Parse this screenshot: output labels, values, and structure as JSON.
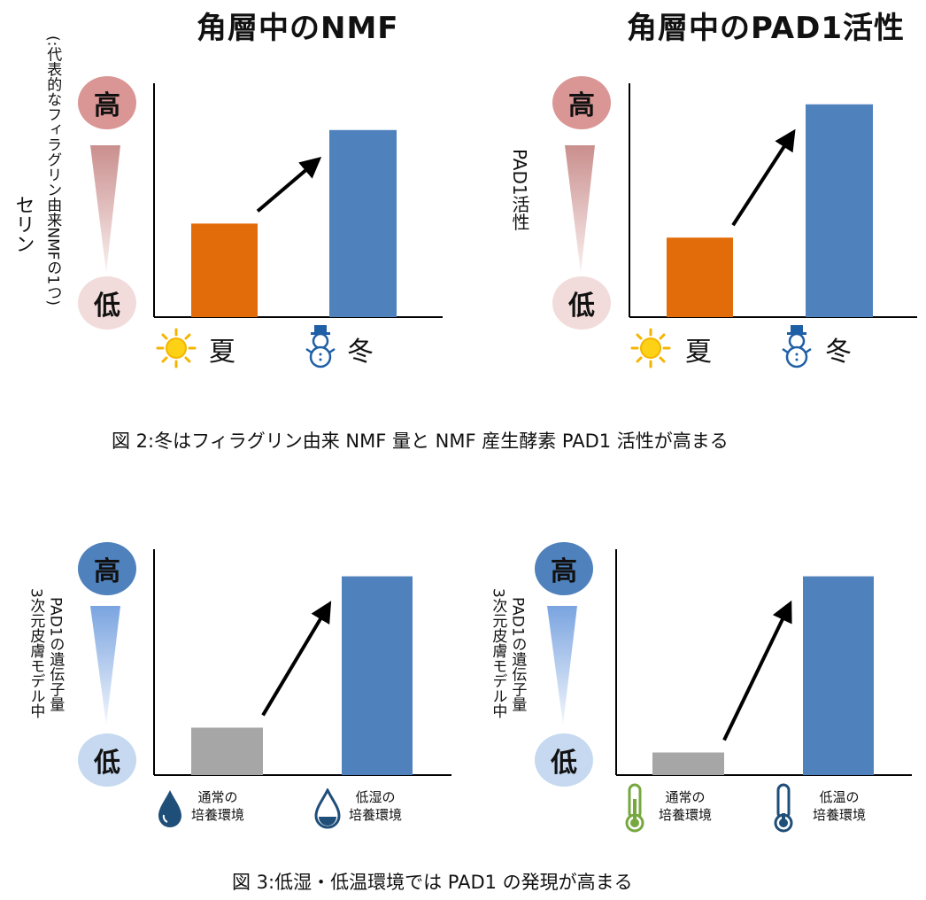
{
  "figure2": {
    "caption": "図 2:冬はフィラグリン由来 NMF 量と NMF 産生酵素 PAD1 活性が高まる"
  },
  "figure3": {
    "caption": "図 3:低湿・低温環境では PAD1 の発現が高まる"
  },
  "colors": {
    "orange": "#e36c0a",
    "blue": "#4f81bd",
    "gray": "#a6a6a6",
    "pink_high": "#d99694",
    "pink_low": "#f2dcdb",
    "blue_high": "#4f81bd",
    "blue_low": "#c6d9f1"
  },
  "chart_data": [
    {
      "type": "bar",
      "title": "角層中のNMF",
      "ylabel": "セリン",
      "ylabel_sub": "(:代表的なフィラグリン由来NMFの1つ)",
      "scale_high": "高",
      "scale_low": "低",
      "categories": [
        "夏",
        "冬"
      ],
      "category_icons": [
        "sun-icon",
        "snowman-icon"
      ],
      "values": [
        0.4,
        0.8
      ],
      "ylim": [
        0,
        1
      ],
      "bar_colors": [
        "#e36c0a",
        "#4f81bd"
      ],
      "annotation": "arrow-up-right"
    },
    {
      "type": "bar",
      "title": "角層中のPAD1活性",
      "ylabel": "PAD1活性",
      "scale_high": "高",
      "scale_low": "低",
      "categories": [
        "夏",
        "冬"
      ],
      "category_icons": [
        "sun-icon",
        "snowman-icon"
      ],
      "values": [
        0.34,
        0.91
      ],
      "ylim": [
        0,
        1
      ],
      "bar_colors": [
        "#e36c0a",
        "#4f81bd"
      ],
      "annotation": "arrow-up-right"
    },
    {
      "type": "bar",
      "ylabel_line1": "3次元皮膚モデル中",
      "ylabel_line2": "PAD1の遺伝子量",
      "scale_high": "高",
      "scale_low": "低",
      "categories": [
        [
          "通常の",
          "培養環境"
        ],
        [
          "低湿の",
          "培養環境"
        ]
      ],
      "category_icons": [
        "water-drop-full-icon",
        "water-drop-low-icon"
      ],
      "values": [
        0.21,
        0.88
      ],
      "ylim": [
        0,
        1
      ],
      "bar_colors": [
        "#a6a6a6",
        "#4f81bd"
      ],
      "annotation": "arrow-up-right"
    },
    {
      "type": "bar",
      "ylabel_line1": "3次元皮膚モデル中",
      "ylabel_line2": "PAD1の遺伝子量",
      "scale_high": "高",
      "scale_low": "低",
      "categories": [
        [
          "通常の",
          "培養環境"
        ],
        [
          "低温の",
          "培養環境"
        ]
      ],
      "category_icons": [
        "thermometer-normal-icon",
        "thermometer-low-icon"
      ],
      "values": [
        0.1,
        0.88
      ],
      "ylim": [
        0,
        1
      ],
      "bar_colors": [
        "#a6a6a6",
        "#4f81bd"
      ],
      "annotation": "arrow-up-right"
    }
  ]
}
